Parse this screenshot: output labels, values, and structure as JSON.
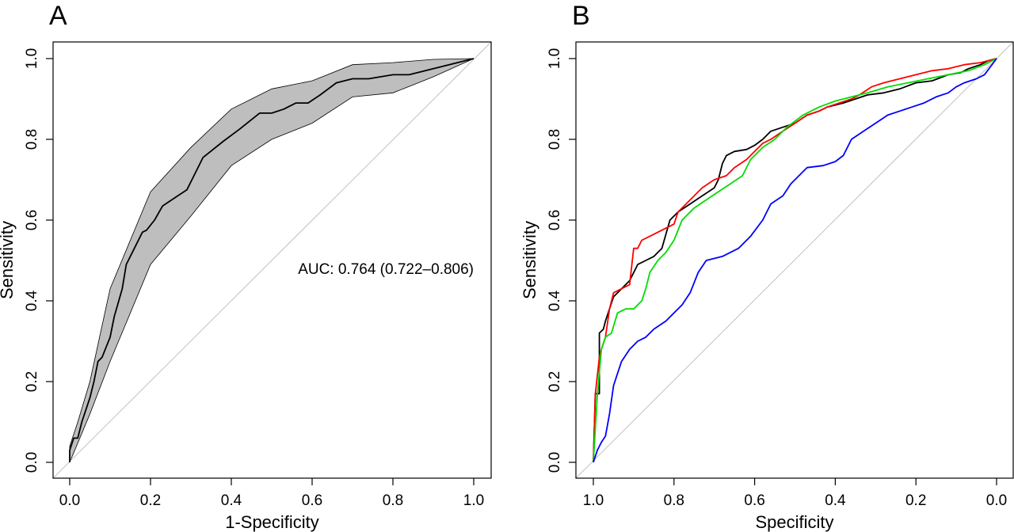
{
  "panels": [
    {
      "letter": "A"
    },
    {
      "letter": "B"
    }
  ],
  "chart_data": [
    {
      "type": "line",
      "xlabel": "1-Specificity",
      "ylabel": "Sensitivity",
      "xlim": [
        0,
        1
      ],
      "ylim": [
        0,
        1
      ],
      "x_ticks": [
        "0.0",
        "0.2",
        "0.4",
        "0.6",
        "0.8",
        "1.0"
      ],
      "y_ticks": [
        "0.0",
        "0.2",
        "0.4",
        "0.6",
        "0.8",
        "1.0"
      ],
      "reference_line": "diagonal",
      "annotation": "AUC: 0.764 (0.722–0.806)",
      "confidence_band": {
        "color": "#bebebe",
        "upper": [
          [
            0,
            0.04
          ],
          [
            0.02,
            0.1
          ],
          [
            0.05,
            0.2
          ],
          [
            0.1,
            0.43
          ],
          [
            0.2,
            0.67
          ],
          [
            0.3,
            0.78
          ],
          [
            0.4,
            0.875
          ],
          [
            0.5,
            0.925
          ],
          [
            0.6,
            0.945
          ],
          [
            0.7,
            0.985
          ],
          [
            0.8,
            0.99
          ],
          [
            0.9,
            0.998
          ],
          [
            1,
            1
          ]
        ],
        "lower": [
          [
            0,
            0
          ],
          [
            0.05,
            0.12
          ],
          [
            0.1,
            0.25
          ],
          [
            0.2,
            0.49
          ],
          [
            0.3,
            0.61
          ],
          [
            0.4,
            0.735
          ],
          [
            0.5,
            0.8
          ],
          [
            0.6,
            0.84
          ],
          [
            0.7,
            0.905
          ],
          [
            0.8,
            0.915
          ],
          [
            0.9,
            0.955
          ],
          [
            1,
            1
          ]
        ]
      },
      "series": [
        {
          "color": "#000000",
          "points": [
            [
              0,
              0
            ],
            [
              0,
              0.03
            ],
            [
              0.01,
              0.06
            ],
            [
              0.02,
              0.06
            ],
            [
              0.03,
              0.1
            ],
            [
              0.04,
              0.13
            ],
            [
              0.05,
              0.16
            ],
            [
              0.06,
              0.2
            ],
            [
              0.07,
              0.25
            ],
            [
              0.08,
              0.26
            ],
            [
              0.1,
              0.31
            ],
            [
              0.11,
              0.36
            ],
            [
              0.13,
              0.43
            ],
            [
              0.14,
              0.49
            ],
            [
              0.16,
              0.53
            ],
            [
              0.18,
              0.57
            ],
            [
              0.19,
              0.575
            ],
            [
              0.21,
              0.6
            ],
            [
              0.23,
              0.635
            ],
            [
              0.26,
              0.655
            ],
            [
              0.29,
              0.675
            ],
            [
              0.33,
              0.755
            ],
            [
              0.38,
              0.795
            ],
            [
              0.42,
              0.825
            ],
            [
              0.47,
              0.865
            ],
            [
              0.5,
              0.865
            ],
            [
              0.53,
              0.875
            ],
            [
              0.56,
              0.89
            ],
            [
              0.59,
              0.89
            ],
            [
              0.62,
              0.91
            ],
            [
              0.66,
              0.94
            ],
            [
              0.7,
              0.95
            ],
            [
              0.74,
              0.95
            ],
            [
              0.8,
              0.96
            ],
            [
              0.84,
              0.96
            ],
            [
              0.9,
              0.975
            ],
            [
              1,
              1
            ]
          ]
        }
      ]
    },
    {
      "type": "line",
      "xlabel": "Specificity",
      "ylabel": "Sensitivity",
      "xlim": [
        1,
        0
      ],
      "ylim": [
        0,
        1
      ],
      "x_ticks": [
        "1.0",
        "0.8",
        "0.6",
        "0.4",
        "0.2",
        "0.0"
      ],
      "y_ticks": [
        "0.0",
        "0.2",
        "0.4",
        "0.6",
        "0.8",
        "1.0"
      ],
      "reference_line": "diagonal",
      "series": [
        {
          "color": "#000000",
          "points": [
            [
              1,
              0
            ],
            [
              0.995,
              0.17
            ],
            [
              0.985,
              0.17
            ],
            [
              0.985,
              0.32
            ],
            [
              0.975,
              0.33
            ],
            [
              0.97,
              0.35
            ],
            [
              0.96,
              0.38
            ],
            [
              0.95,
              0.41
            ],
            [
              0.93,
              0.43
            ],
            [
              0.91,
              0.45
            ],
            [
              0.9,
              0.47
            ],
            [
              0.89,
              0.49
            ],
            [
              0.87,
              0.5
            ],
            [
              0.85,
              0.51
            ],
            [
              0.83,
              0.53
            ],
            [
              0.81,
              0.6
            ],
            [
              0.79,
              0.62
            ],
            [
              0.76,
              0.64
            ],
            [
              0.73,
              0.66
            ],
            [
              0.7,
              0.68
            ],
            [
              0.69,
              0.7
            ],
            [
              0.68,
              0.74
            ],
            [
              0.67,
              0.76
            ],
            [
              0.65,
              0.77
            ],
            [
              0.62,
              0.775
            ],
            [
              0.6,
              0.785
            ],
            [
              0.58,
              0.8
            ],
            [
              0.56,
              0.82
            ],
            [
              0.53,
              0.83
            ],
            [
              0.5,
              0.84
            ],
            [
              0.47,
              0.86
            ],
            [
              0.44,
              0.87
            ],
            [
              0.42,
              0.88
            ],
            [
              0.38,
              0.89
            ],
            [
              0.35,
              0.9
            ],
            [
              0.32,
              0.91
            ],
            [
              0.28,
              0.915
            ],
            [
              0.24,
              0.925
            ],
            [
              0.2,
              0.94
            ],
            [
              0.16,
              0.945
            ],
            [
              0.12,
              0.96
            ],
            [
              0.09,
              0.965
            ],
            [
              0.07,
              0.975
            ],
            [
              0.04,
              0.985
            ],
            [
              0.02,
              0.995
            ],
            [
              0,
              1
            ]
          ]
        },
        {
          "color": "#ff0000",
          "points": [
            [
              1,
              0
            ],
            [
              0.995,
              0.17
            ],
            [
              0.985,
              0.26
            ],
            [
              0.98,
              0.28
            ],
            [
              0.97,
              0.31
            ],
            [
              0.96,
              0.38
            ],
            [
              0.95,
              0.42
            ],
            [
              0.93,
              0.43
            ],
            [
              0.91,
              0.44
            ],
            [
              0.9,
              0.53
            ],
            [
              0.89,
              0.53
            ],
            [
              0.88,
              0.55
            ],
            [
              0.86,
              0.56
            ],
            [
              0.84,
              0.57
            ],
            [
              0.82,
              0.58
            ],
            [
              0.8,
              0.59
            ],
            [
              0.79,
              0.62
            ],
            [
              0.77,
              0.64
            ],
            [
              0.75,
              0.66
            ],
            [
              0.73,
              0.68
            ],
            [
              0.7,
              0.7
            ],
            [
              0.67,
              0.71
            ],
            [
              0.65,
              0.73
            ],
            [
              0.62,
              0.75
            ],
            [
              0.6,
              0.77
            ],
            [
              0.58,
              0.79
            ],
            [
              0.56,
              0.8
            ],
            [
              0.53,
              0.82
            ],
            [
              0.5,
              0.84
            ],
            [
              0.47,
              0.86
            ],
            [
              0.44,
              0.87
            ],
            [
              0.42,
              0.88
            ],
            [
              0.39,
              0.89
            ],
            [
              0.36,
              0.9
            ],
            [
              0.34,
              0.91
            ],
            [
              0.31,
              0.93
            ],
            [
              0.28,
              0.94
            ],
            [
              0.24,
              0.95
            ],
            [
              0.2,
              0.96
            ],
            [
              0.16,
              0.97
            ],
            [
              0.12,
              0.975
            ],
            [
              0.08,
              0.985
            ],
            [
              0.04,
              0.99
            ],
            [
              0,
              1
            ]
          ]
        },
        {
          "color": "#00dd00",
          "points": [
            [
              1,
              0
            ],
            [
              0.99,
              0.17
            ],
            [
              0.98,
              0.28
            ],
            [
              0.97,
              0.31
            ],
            [
              0.955,
              0.32
            ],
            [
              0.94,
              0.37
            ],
            [
              0.92,
              0.38
            ],
            [
              0.9,
              0.38
            ],
            [
              0.88,
              0.4
            ],
            [
              0.87,
              0.43
            ],
            [
              0.86,
              0.47
            ],
            [
              0.84,
              0.5
            ],
            [
              0.82,
              0.52
            ],
            [
              0.8,
              0.55
            ],
            [
              0.78,
              0.6
            ],
            [
              0.75,
              0.63
            ],
            [
              0.72,
              0.65
            ],
            [
              0.69,
              0.67
            ],
            [
              0.66,
              0.69
            ],
            [
              0.63,
              0.71
            ],
            [
              0.61,
              0.75
            ],
            [
              0.58,
              0.78
            ],
            [
              0.55,
              0.8
            ],
            [
              0.52,
              0.83
            ],
            [
              0.48,
              0.86
            ],
            [
              0.44,
              0.88
            ],
            [
              0.4,
              0.895
            ],
            [
              0.36,
              0.905
            ],
            [
              0.32,
              0.915
            ],
            [
              0.27,
              0.93
            ],
            [
              0.22,
              0.94
            ],
            [
              0.17,
              0.95
            ],
            [
              0.12,
              0.96
            ],
            [
              0.07,
              0.97
            ],
            [
              0.03,
              0.985
            ],
            [
              0,
              1
            ]
          ]
        },
        {
          "color": "#0000ff",
          "points": [
            [
              1,
              0
            ],
            [
              0.99,
              0.03
            ],
            [
              0.98,
              0.05
            ],
            [
              0.97,
              0.065
            ],
            [
              0.96,
              0.12
            ],
            [
              0.95,
              0.19
            ],
            [
              0.94,
              0.22
            ],
            [
              0.93,
              0.25
            ],
            [
              0.91,
              0.28
            ],
            [
              0.89,
              0.3
            ],
            [
              0.87,
              0.31
            ],
            [
              0.85,
              0.33
            ],
            [
              0.82,
              0.35
            ],
            [
              0.8,
              0.37
            ],
            [
              0.78,
              0.39
            ],
            [
              0.76,
              0.42
            ],
            [
              0.74,
              0.47
            ],
            [
              0.72,
              0.5
            ],
            [
              0.68,
              0.51
            ],
            [
              0.64,
              0.53
            ],
            [
              0.61,
              0.56
            ],
            [
              0.58,
              0.6
            ],
            [
              0.56,
              0.64
            ],
            [
              0.53,
              0.66
            ],
            [
              0.51,
              0.69
            ],
            [
              0.49,
              0.71
            ],
            [
              0.47,
              0.73
            ],
            [
              0.43,
              0.735
            ],
            [
              0.4,
              0.745
            ],
            [
              0.38,
              0.76
            ],
            [
              0.36,
              0.8
            ],
            [
              0.33,
              0.82
            ],
            [
              0.3,
              0.84
            ],
            [
              0.27,
              0.86
            ],
            [
              0.24,
              0.87
            ],
            [
              0.21,
              0.88
            ],
            [
              0.18,
              0.89
            ],
            [
              0.15,
              0.905
            ],
            [
              0.12,
              0.915
            ],
            [
              0.1,
              0.93
            ],
            [
              0.08,
              0.94
            ],
            [
              0.05,
              0.95
            ],
            [
              0.03,
              0.96
            ],
            [
              0.015,
              0.98
            ],
            [
              0,
              1
            ]
          ]
        }
      ]
    }
  ]
}
